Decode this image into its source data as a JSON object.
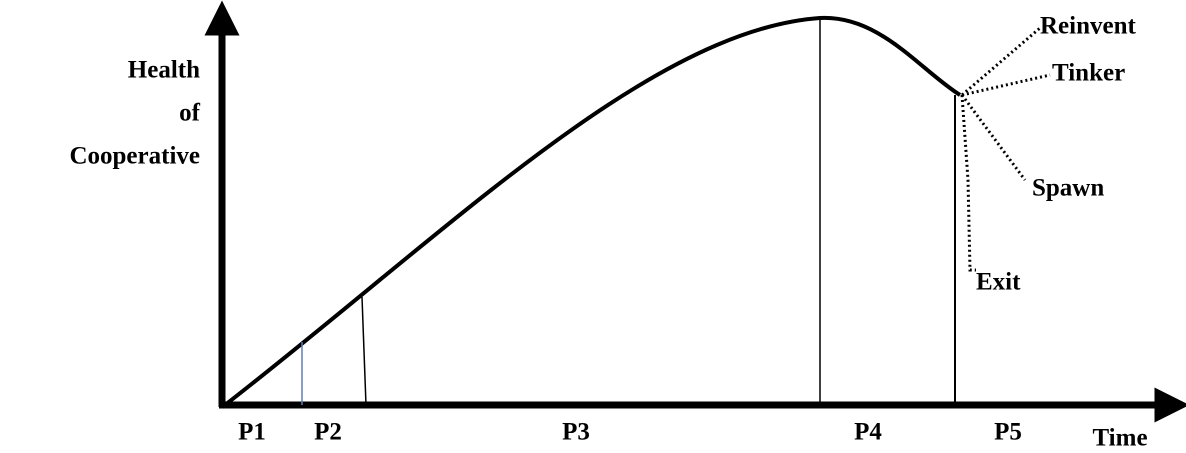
{
  "y_axis_label": [
    "Health",
    "of",
    "Cooperative"
  ],
  "x_axis_label": "Time",
  "phases": [
    "P1",
    "P2",
    "P3",
    "P4",
    "P5"
  ],
  "branches": [
    "Reinvent",
    "Tinker",
    "Spawn",
    "Exit"
  ]
}
